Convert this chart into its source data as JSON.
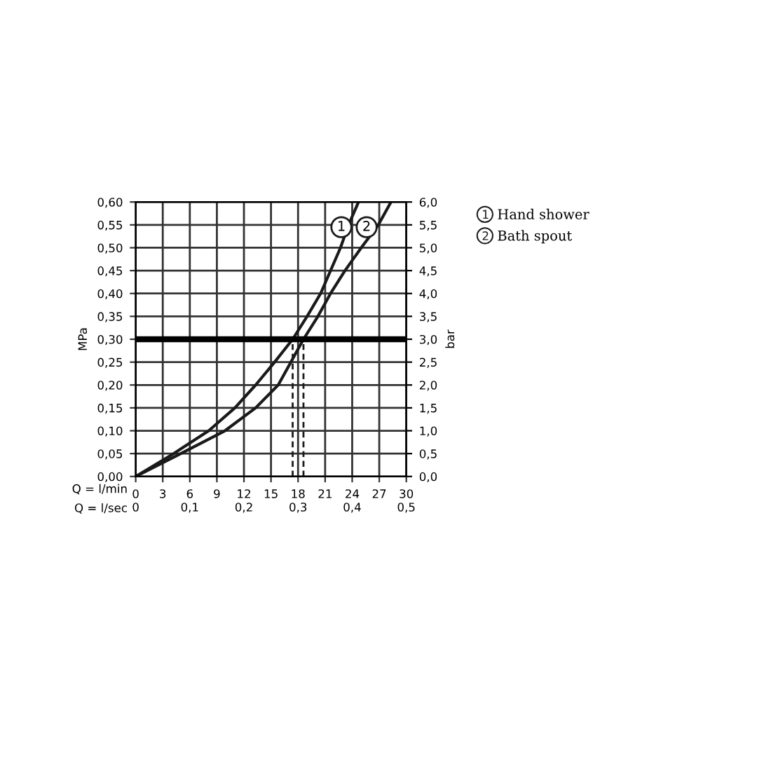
{
  "chart_data": {
    "type": "line",
    "xlabel": "Q = l/min",
    "x2label": "Q = l/sec",
    "ylabel": "MPa",
    "y2label": "bar",
    "xlim": [
      0,
      30
    ],
    "xticks": [
      0,
      3,
      6,
      9,
      12,
      15,
      18,
      21,
      24,
      27,
      30
    ],
    "x2lim": [
      0,
      0.5
    ],
    "x2ticks": [
      0,
      {
        "value": 0.1,
        "label": "0,1"
      },
      {
        "value": 0.2,
        "label": "0,2"
      },
      {
        "value": 0.3,
        "label": "0,3"
      },
      {
        "value": 0.4,
        "label": "0,4"
      },
      {
        "value": 0.5,
        "label": "0,5"
      }
    ],
    "ylim": [
      0,
      0.6
    ],
    "yticks": [
      {
        "value": 0,
        "label": "0,00"
      },
      {
        "value": 0.05,
        "label": "0,05"
      },
      {
        "value": 0.1,
        "label": "0,10"
      },
      {
        "value": 0.15,
        "label": "0,15"
      },
      {
        "value": 0.2,
        "label": "0,20"
      },
      {
        "value": 0.25,
        "label": "0,25"
      },
      {
        "value": 0.3,
        "label": "0,30"
      },
      {
        "value": 0.35,
        "label": "0,35"
      },
      {
        "value": 0.4,
        "label": "0,40"
      },
      {
        "value": 0.45,
        "label": "0,45"
      },
      {
        "value": 0.5,
        "label": "0,50"
      },
      {
        "value": 0.55,
        "label": "0,55"
      },
      {
        "value": 0.6,
        "label": "0,60"
      }
    ],
    "y2lim": [
      0,
      6
    ],
    "y2ticks": [
      {
        "value": 0,
        "label": "0,0"
      },
      {
        "value": 0.5,
        "label": "0,5"
      },
      {
        "value": 1,
        "label": "1,0"
      },
      {
        "value": 1.5,
        "label": "1,5"
      },
      {
        "value": 2,
        "label": "2,0"
      },
      {
        "value": 2.5,
        "label": "2,5"
      },
      {
        "value": 3,
        "label": "3,0"
      },
      {
        "value": 3.5,
        "label": "3,5"
      },
      {
        "value": 4,
        "label": "4,0"
      },
      {
        "value": 4.5,
        "label": "4,5"
      },
      {
        "value": 5,
        "label": "5,0"
      },
      {
        "value": 5.5,
        "label": "5,5"
      },
      {
        "value": 6,
        "label": "6,0"
      }
    ],
    "grid": true,
    "legend": "right",
    "marker": "none",
    "series": [
      {
        "name": "Hand shower",
        "color": "#1a1a1a",
        "x": [
          0,
          4.2,
          8.1,
          11,
          13.3,
          15.4,
          17.4,
          19.0,
          20.5,
          22.7,
          23.6,
          24.7
        ],
        "values": [
          0,
          0.05,
          0.1,
          0.15,
          0.2,
          0.25,
          0.3,
          0.35,
          0.4,
          0.5,
          0.55,
          0.6
        ]
      },
      {
        "name": "Bath spout",
        "color": "#1a1a1a",
        "x": [
          0,
          5.0,
          9.9,
          13.3,
          15.8,
          17.2,
          18.6,
          20.2,
          21.6,
          23.2,
          25.0,
          26.9,
          28.3
        ],
        "values": [
          0,
          0.05,
          0.1,
          0.15,
          0.2,
          0.25,
          0.3,
          0.35,
          0.4,
          0.45,
          0.5,
          0.55,
          0.6
        ]
      },
      {
        "color": "#1a1a1a",
        "line_style": "dashed",
        "x": [
          17.4,
          17.4
        ],
        "values": [
          0,
          0.3
        ]
      },
      {
        "color": "#1a1a1a",
        "line_style": "dashed",
        "x": [
          18.6,
          18.6
        ],
        "values": [
          0,
          0.3
        ]
      }
    ],
    "ref_lines": [
      {
        "axis": "y",
        "value": 0.3,
        "color": "#000000"
      }
    ],
    "annotations": [
      {
        "text": "1",
        "x": 22.8,
        "y": 0.545
      },
      {
        "text": "2",
        "x": 25.6,
        "y": 0.545
      }
    ]
  }
}
